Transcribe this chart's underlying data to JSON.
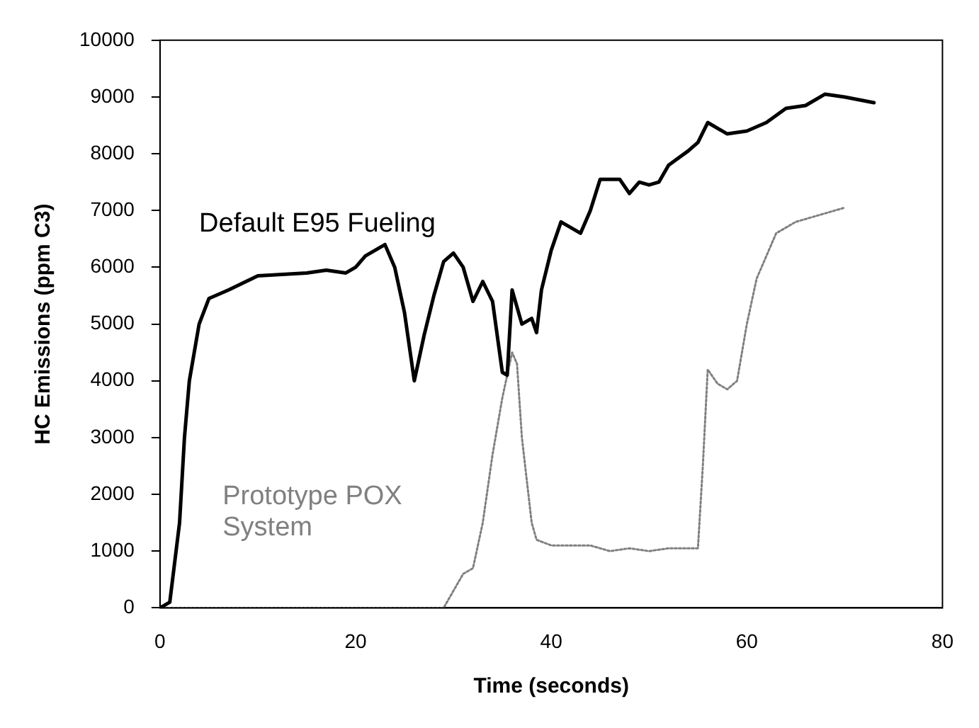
{
  "chart_data": {
    "type": "line",
    "xlabel": "Time (seconds)",
    "ylabel": "HC Emissions (ppm C3)",
    "xlim": [
      0,
      80
    ],
    "xticks": [
      0,
      20,
      40,
      60,
      80
    ],
    "ylim": [
      0,
      10000
    ],
    "yticks": [
      0,
      1000,
      2000,
      3000,
      4000,
      5000,
      6000,
      7000,
      8000,
      9000,
      10000
    ],
    "grid": false,
    "legend": false,
    "marker": "none",
    "series": [
      {
        "name": "Default E95 Fueling",
        "color": "#000000",
        "line_style": "solid",
        "x": [
          0,
          1,
          2,
          2.5,
          3,
          4,
          5,
          7,
          10,
          15,
          17,
          19,
          20,
          21,
          23,
          24,
          25,
          26,
          27,
          28,
          29,
          30,
          31,
          32,
          33,
          34,
          35,
          35.5,
          36,
          37,
          38,
          38.5,
          39,
          40,
          41,
          43,
          44,
          45,
          47,
          48,
          49,
          50,
          51,
          52,
          54,
          55,
          56,
          58,
          60,
          62,
          64,
          66,
          68,
          70,
          73
        ],
        "values": [
          0,
          100,
          1500,
          3000,
          4000,
          5000,
          5450,
          5600,
          5850,
          5900,
          5950,
          5900,
          6000,
          6200,
          6400,
          6000,
          5200,
          4000,
          4800,
          5500,
          6100,
          6250,
          6000,
          5400,
          5750,
          5400,
          4150,
          4100,
          5600,
          5000,
          5100,
          4850,
          5600,
          6300,
          6800,
          6600,
          7000,
          7550,
          7550,
          7300,
          7500,
          7450,
          7500,
          7800,
          8050,
          8200,
          8550,
          8350,
          8400,
          8550,
          8800,
          8850,
          9050,
          9000,
          8900
        ]
      },
      {
        "name": "Prototype POX\nSystem",
        "color": "#808080",
        "line_style": "dotted",
        "x": [
          0,
          29,
          30,
          31,
          32,
          33,
          34,
          35,
          36,
          36.5,
          37,
          38,
          38.5,
          40,
          44,
          46,
          48,
          50,
          52,
          55,
          55.5,
          56,
          57,
          58,
          59,
          60,
          61,
          62,
          63,
          65,
          67,
          70
        ],
        "values": [
          0,
          0,
          300,
          600,
          700,
          1500,
          2700,
          3700,
          4500,
          4300,
          3000,
          1500,
          1200,
          1100,
          1100,
          1000,
          1050,
          1000,
          1050,
          1050,
          2500,
          4200,
          3950,
          3850,
          4000,
          5000,
          5800,
          6200,
          6600,
          6800,
          6900,
          7050
        ]
      }
    ]
  }
}
